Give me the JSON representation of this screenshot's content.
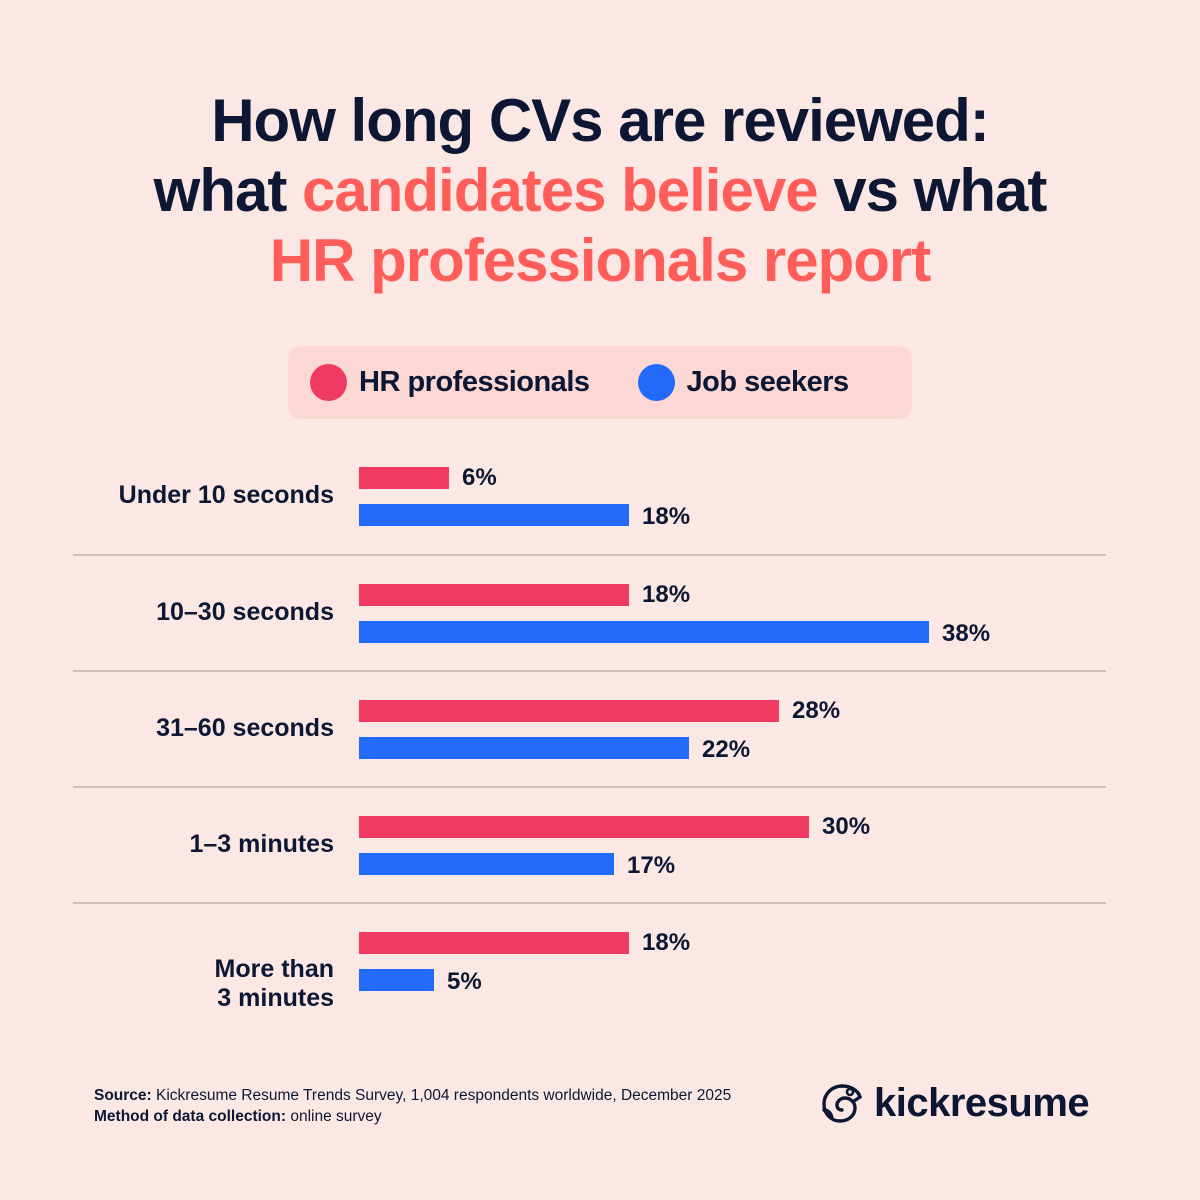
{
  "title": {
    "line1": "How long CVs are reviewed:",
    "line2_pre": "what ",
    "line2_accent": "candidates believe",
    "line2_post": " vs what",
    "line3_accent": "HR professionals report"
  },
  "colors": {
    "background": "#fbe8e4",
    "legend_bg": "#fbd8d4",
    "hr": "#ef3a61",
    "job_seekers": "#226bfa",
    "accent_text": "#fe5d5a",
    "text": "#0d1733",
    "divider": "#cdbfbf"
  },
  "legend": [
    {
      "label": "HR professionals",
      "color": "#ef3a61"
    },
    {
      "label": "Job seekers",
      "color": "#226bfa"
    }
  ],
  "chart_data": {
    "type": "bar",
    "orientation": "horizontal",
    "title": "How long CVs are reviewed: what candidates believe vs what HR professionals report",
    "categories": [
      "Under 10 seconds",
      "10–30 seconds",
      "31–60 seconds",
      "1–3 minutes",
      "More than 3 minutes"
    ],
    "series": [
      {
        "name": "HR professionals",
        "color": "#ef3a61",
        "values": [
          6,
          18,
          28,
          30,
          18
        ]
      },
      {
        "name": "Job seekers",
        "color": "#226bfa",
        "values": [
          18,
          38,
          22,
          17,
          5
        ]
      }
    ],
    "value_suffix": "%",
    "xlabel": "",
    "ylabel": "",
    "grid": false,
    "legend_position": "top"
  },
  "rows": [
    {
      "label_l1": "Under 10 seconds",
      "label_l2": "",
      "hr": "6%",
      "js": "18%"
    },
    {
      "label_l1": "10–30 seconds",
      "label_l2": "",
      "hr": "18%",
      "js": "38%"
    },
    {
      "label_l1": "31–60 seconds",
      "label_l2": "",
      "hr": "28%",
      "js": "22%"
    },
    {
      "label_l1": "1–3 minutes",
      "label_l2": "",
      "hr": "30%",
      "js": "17%"
    },
    {
      "label_l1": "More than",
      "label_l2": "3 minutes",
      "hr": "18%",
      "js": "5%"
    }
  ],
  "footer": {
    "source_label": "Source:",
    "source_text": " Kickresume Resume Trends Survey, 1,004 respondents worldwide, December 2025",
    "method_label": "Method of data collection:",
    "method_text": " online survey"
  },
  "brand": {
    "name": "kickresume",
    "icon": "chameleon-logo-icon"
  }
}
